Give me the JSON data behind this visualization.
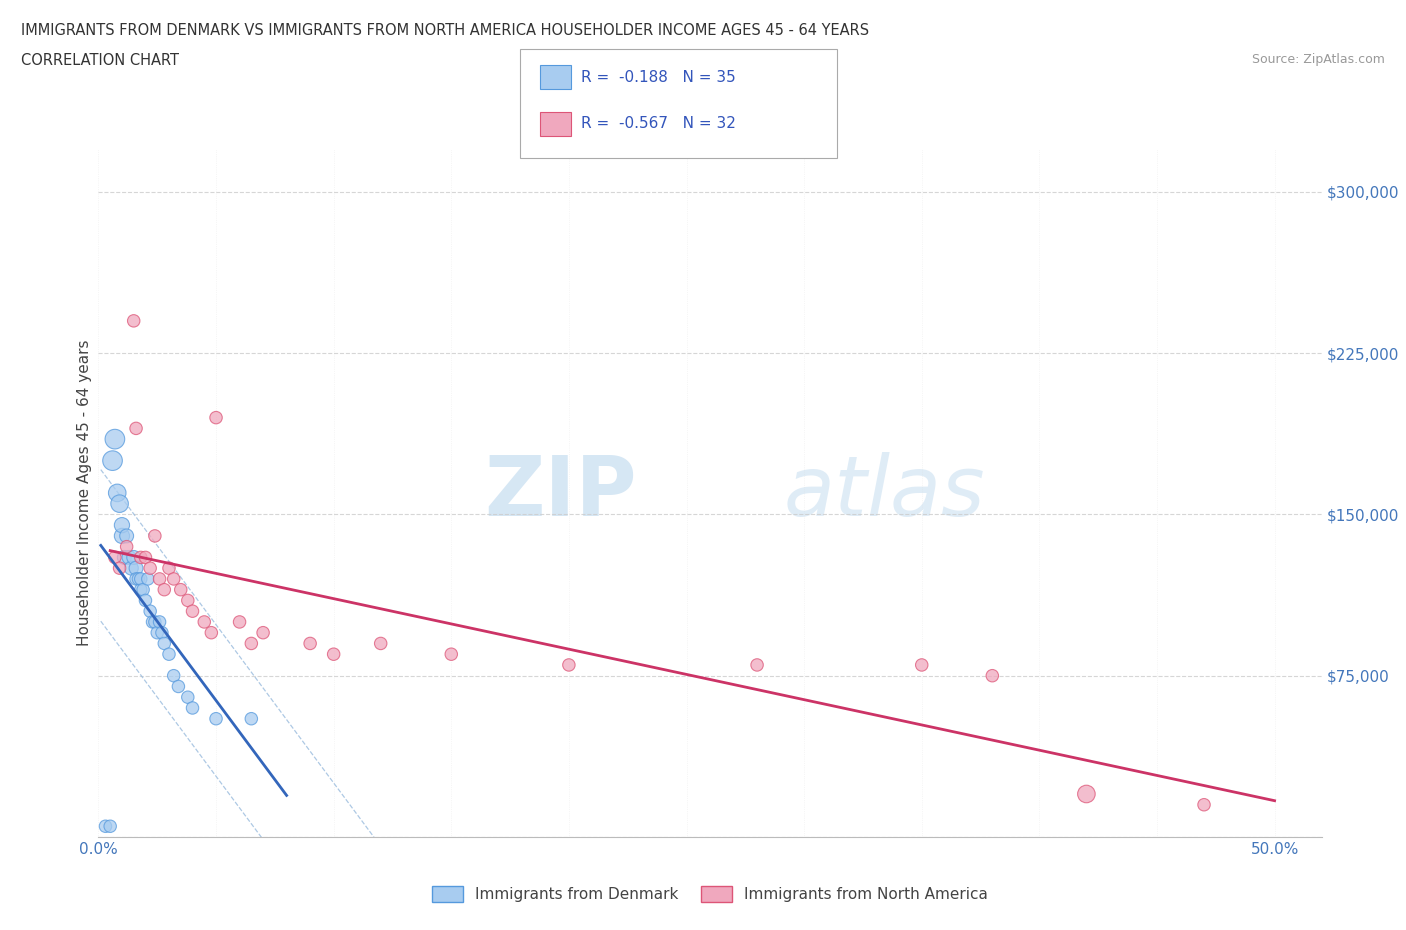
{
  "title_line1": "IMMIGRANTS FROM DENMARK VS IMMIGRANTS FROM NORTH AMERICA HOUSEHOLDER INCOME AGES 45 - 64 YEARS",
  "title_line2": "CORRELATION CHART",
  "source_text": "Source: ZipAtlas.com",
  "ylabel": "Householder Income Ages 45 - 64 years",
  "xlim": [
    0.0,
    0.52
  ],
  "ylim": [
    0,
    320000
  ],
  "ytick_positions": [
    0,
    75000,
    150000,
    225000,
    300000
  ],
  "ytick_labels": [
    "",
    "$75,000",
    "$150,000",
    "$225,000",
    "$300,000"
  ],
  "xtick_positions": [
    0.0,
    0.05,
    0.1,
    0.15,
    0.2,
    0.25,
    0.3,
    0.35,
    0.4,
    0.45,
    0.5
  ],
  "xtick_labels": [
    "0.0%",
    "",
    "",
    "",
    "",
    "",
    "",
    "",
    "",
    "",
    "50.0%"
  ],
  "watermark_zip": "ZIP",
  "watermark_atlas": "atlas",
  "color_denmark_fill": "#a8ccf0",
  "color_denmark_edge": "#5599dd",
  "color_denmark_line": "#3366bb",
  "color_na_fill": "#f0a8be",
  "color_na_edge": "#dd5577",
  "color_na_line": "#cc3366",
  "color_conf_band": "#99bbdd",
  "label_denmark": "Immigrants from Denmark",
  "label_na": "Immigrants from North America",
  "bg_color": "#ffffff",
  "legend_r1": "R =  -0.188",
  "legend_n1": "N = 35",
  "legend_r2": "R =  -0.567",
  "legend_n2": "N = 32",
  "denmark_x": [
    0.003,
    0.005,
    0.006,
    0.007,
    0.008,
    0.009,
    0.01,
    0.01,
    0.011,
    0.012,
    0.013,
    0.014,
    0.015,
    0.016,
    0.016,
    0.017,
    0.018,
    0.018,
    0.019,
    0.02,
    0.021,
    0.022,
    0.023,
    0.024,
    0.025,
    0.026,
    0.027,
    0.028,
    0.03,
    0.032,
    0.034,
    0.038,
    0.04,
    0.05,
    0.065
  ],
  "denmark_y": [
    5000,
    5000,
    175000,
    185000,
    160000,
    155000,
    140000,
    145000,
    130000,
    140000,
    130000,
    125000,
    130000,
    125000,
    120000,
    120000,
    115000,
    120000,
    115000,
    110000,
    120000,
    105000,
    100000,
    100000,
    95000,
    100000,
    95000,
    90000,
    85000,
    75000,
    70000,
    65000,
    60000,
    55000,
    55000
  ],
  "denmark_sizes": [
    80,
    80,
    200,
    200,
    160,
    160,
    120,
    120,
    100,
    100,
    100,
    100,
    100,
    100,
    80,
    80,
    80,
    80,
    80,
    80,
    80,
    80,
    80,
    80,
    80,
    80,
    80,
    80,
    80,
    80,
    80,
    80,
    80,
    80,
    80
  ],
  "na_x": [
    0.007,
    0.009,
    0.012,
    0.015,
    0.016,
    0.018,
    0.02,
    0.022,
    0.024,
    0.026,
    0.028,
    0.03,
    0.032,
    0.035,
    0.038,
    0.04,
    0.045,
    0.048,
    0.05,
    0.06,
    0.065,
    0.07,
    0.09,
    0.1,
    0.12,
    0.15,
    0.2,
    0.28,
    0.35,
    0.38,
    0.42,
    0.47
  ],
  "na_y": [
    130000,
    125000,
    135000,
    240000,
    190000,
    130000,
    130000,
    125000,
    140000,
    120000,
    115000,
    125000,
    120000,
    115000,
    110000,
    105000,
    100000,
    95000,
    195000,
    100000,
    90000,
    95000,
    90000,
    85000,
    90000,
    85000,
    80000,
    80000,
    80000,
    75000,
    20000,
    15000
  ],
  "na_sizes": [
    80,
    80,
    80,
    80,
    80,
    80,
    80,
    80,
    80,
    80,
    80,
    80,
    80,
    80,
    80,
    80,
    80,
    80,
    80,
    80,
    80,
    80,
    80,
    80,
    80,
    80,
    80,
    80,
    80,
    80,
    160,
    80
  ]
}
